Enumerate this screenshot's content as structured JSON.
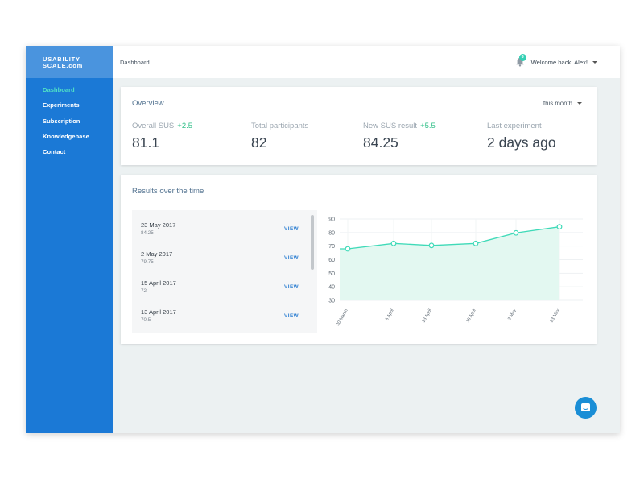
{
  "app": {
    "logo_line1": "USABILITY",
    "logo_line2": "SCALE.com"
  },
  "sidebar": {
    "items": [
      {
        "label": "Dashboard",
        "active": true
      },
      {
        "label": "Experiments"
      },
      {
        "label": "Subscription"
      },
      {
        "label": "Knowledgebase"
      },
      {
        "label": "Contact"
      }
    ]
  },
  "header": {
    "breadcrumb": "Dashboard",
    "notification_count": "3",
    "welcome": "Welcome back, Alex!"
  },
  "overview": {
    "title": "Overview",
    "period": "this month",
    "stats": [
      {
        "label": "Overall SUS",
        "delta": "+2.5",
        "value": "81.1"
      },
      {
        "label": "Total participants",
        "delta": "",
        "value": "82"
      },
      {
        "label": "New SUS result",
        "delta": "+5.5",
        "value": "84.25"
      },
      {
        "label": "Last experiment",
        "delta": "",
        "value": "2 days ago"
      }
    ]
  },
  "results": {
    "title": "Results over the time",
    "view_label": "VIEW",
    "items": [
      {
        "date": "23 May 2017",
        "value": "84.25"
      },
      {
        "date": "2 May 2017",
        "value": "79.75"
      },
      {
        "date": "15 April 2017",
        "value": "72"
      },
      {
        "date": "13 April 2017",
        "value": "70.5"
      }
    ]
  },
  "chart_data": {
    "type": "area",
    "categories": [
      "30 March",
      "6 April",
      "13 April",
      "15 April",
      "2 May",
      "23 May"
    ],
    "values": [
      68,
      72,
      70.5,
      72,
      79.75,
      84.25
    ],
    "y_ticks": [
      "90",
      "80",
      "70",
      "60",
      "50",
      "40",
      "30"
    ],
    "ylim": [
      30,
      90
    ],
    "grid": true,
    "line_color": "#3fdab8",
    "fill_color": "#e3f8f1"
  },
  "colors": {
    "sidebar": "#1b79d6",
    "accent": "#4fe0c6",
    "positive": "#34c08a",
    "link": "#2c7ed1"
  }
}
